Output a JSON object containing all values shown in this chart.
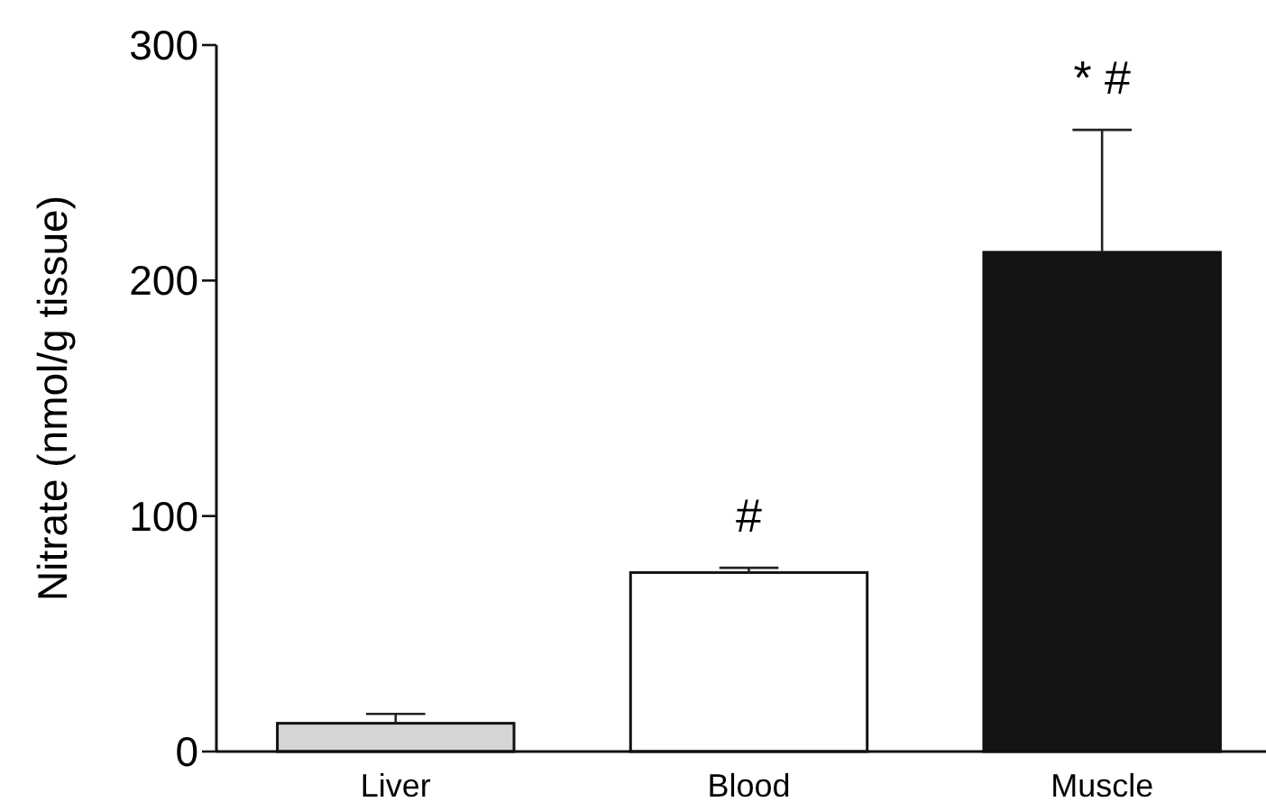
{
  "chart_data": {
    "type": "bar",
    "ylabel": "Nitrate (nmol/g tissue)",
    "categories": [
      "Liver",
      "Blood",
      "Muscle"
    ],
    "values": [
      12,
      76,
      212
    ],
    "errors": [
      4,
      2,
      52
    ],
    "colors": [
      "#d4d6d4",
      "#ffffff",
      "#141414"
    ],
    "ylim": [
      0,
      300
    ],
    "yticks": [
      0,
      100,
      200,
      300
    ],
    "grid": false,
    "annotations": [
      "#",
      "* #"
    ]
  }
}
